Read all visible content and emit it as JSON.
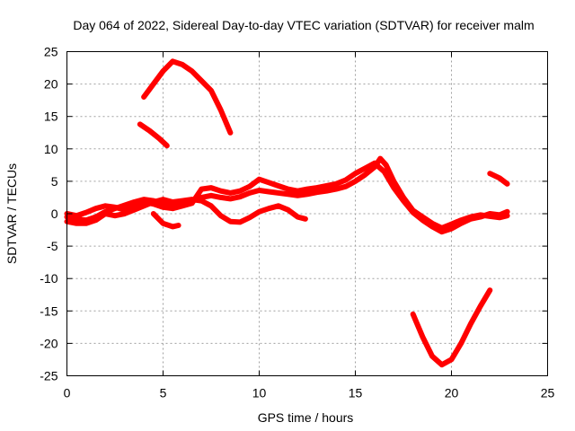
{
  "chart_data": {
    "type": "line",
    "title": "Day 064 of 2022, Sidereal Day-to-day VTEC variation (SDTVAR) for receiver malm",
    "xlabel": "GPS time / hours",
    "ylabel": "SDTVAR / TECUs",
    "xlim": [
      0,
      25
    ],
    "ylim": [
      -25,
      25
    ],
    "xticks": [
      0,
      5,
      10,
      15,
      20,
      25
    ],
    "yticks": [
      -25,
      -20,
      -15,
      -10,
      -5,
      0,
      5,
      10,
      15,
      20,
      25
    ],
    "grid": true,
    "series_color": "#ff0000",
    "series": [
      {
        "name": "trace-a",
        "points": [
          [
            0.0,
            -0.5
          ],
          [
            0.5,
            -0.8
          ],
          [
            1.0,
            -1.0
          ],
          [
            1.5,
            -0.5
          ],
          [
            2.0,
            0.3
          ],
          [
            2.5,
            0.8
          ],
          [
            3.0,
            1.3
          ],
          [
            3.5,
            1.8
          ],
          [
            4.0,
            2.2
          ],
          [
            4.5,
            2.0
          ],
          [
            5.0,
            1.5
          ],
          [
            5.5,
            1.3
          ],
          [
            6.0,
            1.6
          ],
          [
            6.5,
            2.0
          ],
          [
            7.0,
            2.5
          ],
          [
            7.5,
            2.8
          ],
          [
            8.0,
            2.5
          ],
          [
            8.5,
            2.3
          ],
          [
            9.0,
            2.6
          ],
          [
            9.5,
            3.2
          ],
          [
            10.0,
            3.6
          ],
          [
            10.5,
            3.4
          ],
          [
            11.0,
            3.2
          ],
          [
            11.5,
            3.0
          ],
          [
            12.0,
            2.8
          ],
          [
            12.5,
            3.0
          ],
          [
            13.0,
            3.3
          ],
          [
            13.5,
            3.5
          ],
          [
            14.0,
            3.8
          ],
          [
            14.5,
            4.2
          ],
          [
            15.0,
            5.0
          ],
          [
            15.5,
            6.0
          ],
          [
            16.0,
            7.2
          ],
          [
            16.3,
            8.5
          ],
          [
            16.6,
            7.5
          ],
          [
            17.0,
            5.0
          ],
          [
            17.5,
            2.5
          ],
          [
            18.0,
            0.5
          ],
          [
            18.5,
            -0.5
          ],
          [
            19.0,
            -1.5
          ],
          [
            19.5,
            -2.2
          ],
          [
            20.0,
            -1.6
          ],
          [
            20.5,
            -1.0
          ],
          [
            21.0,
            -0.5
          ],
          [
            21.5,
            -0.2
          ],
          [
            22.0,
            -0.4
          ],
          [
            22.5,
            -0.6
          ],
          [
            22.9,
            -0.3
          ]
        ]
      },
      {
        "name": "trace-b",
        "points": [
          [
            0.0,
            0.0
          ],
          [
            0.5,
            -0.3
          ],
          [
            1.0,
            0.2
          ],
          [
            1.5,
            0.8
          ],
          [
            2.0,
            1.2
          ],
          [
            2.5,
            1.0
          ],
          [
            3.0,
            0.6
          ],
          [
            3.5,
            1.2
          ],
          [
            4.0,
            1.8
          ],
          [
            4.5,
            1.5
          ],
          [
            5.0,
            1.0
          ],
          [
            5.5,
            0.8
          ],
          [
            6.0,
            1.2
          ],
          [
            6.5,
            1.6
          ],
          [
            7.0,
            3.8
          ],
          [
            7.5,
            4.0
          ],
          [
            8.0,
            3.5
          ],
          [
            8.5,
            3.2
          ],
          [
            9.0,
            3.5
          ],
          [
            9.5,
            4.2
          ],
          [
            10.0,
            5.3
          ],
          [
            10.5,
            4.8
          ],
          [
            11.0,
            4.3
          ],
          [
            11.5,
            3.8
          ],
          [
            12.0,
            3.5
          ],
          [
            12.5,
            3.8
          ],
          [
            13.0,
            4.0
          ],
          [
            13.5,
            4.3
          ],
          [
            14.0,
            4.6
          ],
          [
            14.5,
            5.2
          ],
          [
            15.0,
            6.2
          ],
          [
            15.5,
            7.0
          ],
          [
            16.0,
            7.8
          ],
          [
            16.5,
            6.5
          ],
          [
            17.0,
            4.0
          ],
          [
            17.5,
            2.0
          ],
          [
            18.0,
            0.2
          ],
          [
            18.5,
            -1.0
          ],
          [
            19.0,
            -2.0
          ],
          [
            19.5,
            -2.8
          ],
          [
            20.0,
            -2.3
          ],
          [
            20.5,
            -1.5
          ],
          [
            21.0,
            -0.8
          ],
          [
            21.5,
            -0.5
          ],
          [
            22.0,
            0.0
          ],
          [
            22.5,
            -0.2
          ],
          [
            22.9,
            0.3
          ]
        ]
      },
      {
        "name": "trace-c",
        "points": [
          [
            0.0,
            -1.2
          ],
          [
            0.5,
            -1.5
          ],
          [
            1.0,
            -1.5
          ],
          [
            1.5,
            -1.0
          ],
          [
            2.0,
            0.0
          ],
          [
            2.5,
            -0.3
          ],
          [
            3.0,
            0.0
          ],
          [
            3.5,
            0.6
          ],
          [
            4.0,
            1.2
          ],
          [
            4.5,
            1.8
          ],
          [
            5.0,
            2.2
          ],
          [
            5.5,
            1.8
          ],
          [
            6.0,
            2.0
          ],
          [
            6.5,
            2.2
          ],
          [
            7.0,
            2.0
          ],
          [
            7.5,
            1.2
          ],
          [
            8.0,
            -0.3
          ],
          [
            8.5,
            -1.2
          ],
          [
            9.0,
            -1.3
          ],
          [
            9.5,
            -0.6
          ],
          [
            10.0,
            0.3
          ],
          [
            10.5,
            0.8
          ],
          [
            11.0,
            1.2
          ],
          [
            11.5,
            0.6
          ],
          [
            12.0,
            -0.5
          ],
          [
            12.4,
            -0.8
          ]
        ]
      },
      {
        "name": "trace-d",
        "points": [
          [
            4.5,
            0.0
          ],
          [
            5.0,
            -1.5
          ],
          [
            5.5,
            -2.0
          ],
          [
            5.8,
            -1.8
          ]
        ]
      },
      {
        "name": "trace-e",
        "points": [
          [
            4.0,
            18.0
          ],
          [
            4.5,
            20.0
          ],
          [
            5.0,
            22.0
          ],
          [
            5.5,
            23.5
          ],
          [
            6.0,
            23.0
          ],
          [
            6.5,
            22.0
          ],
          [
            7.0,
            20.5
          ],
          [
            7.5,
            19.0
          ],
          [
            8.0,
            16.0
          ],
          [
            8.5,
            12.5
          ]
        ]
      },
      {
        "name": "trace-f",
        "points": [
          [
            3.8,
            13.8
          ],
          [
            4.3,
            12.8
          ],
          [
            4.8,
            11.6
          ],
          [
            5.2,
            10.5
          ]
        ]
      },
      {
        "name": "trace-g",
        "points": [
          [
            18.0,
            -15.5
          ],
          [
            18.5,
            -19.0
          ],
          [
            19.0,
            -22.0
          ],
          [
            19.5,
            -23.3
          ],
          [
            20.0,
            -22.5
          ],
          [
            20.5,
            -20.0
          ],
          [
            21.0,
            -17.0
          ],
          [
            21.5,
            -14.3
          ],
          [
            22.0,
            -11.8
          ]
        ]
      },
      {
        "name": "trace-h",
        "points": [
          [
            22.0,
            6.2
          ],
          [
            22.5,
            5.5
          ],
          [
            22.9,
            4.6
          ]
        ]
      }
    ]
  }
}
